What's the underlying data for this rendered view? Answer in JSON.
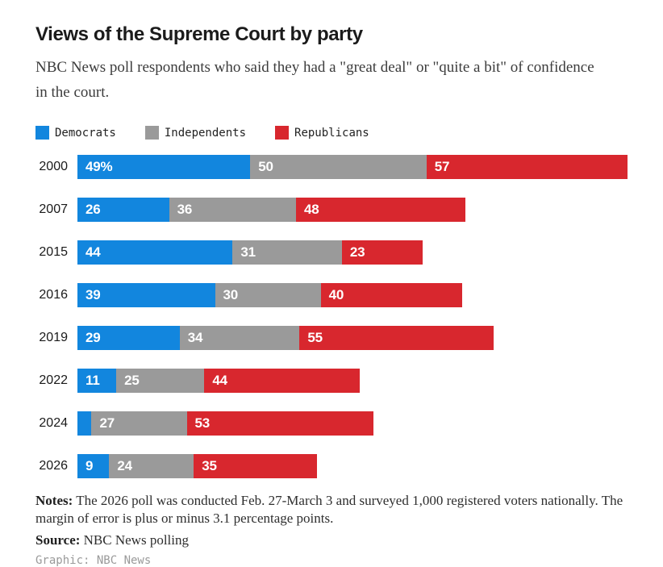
{
  "header": {
    "title": "Views of the Supreme Court by party",
    "subtitle": "NBC News poll respondents who said they had a \"great deal\" or \"quite a bit\" of confidence in the court."
  },
  "chart_data": {
    "type": "bar",
    "orientation": "horizontal",
    "stacked": true,
    "grid": false,
    "legend_position": "top",
    "x_max_units": 156,
    "categories": [
      "2000",
      "2007",
      "2015",
      "2016",
      "2019",
      "2022",
      "2024",
      "2026"
    ],
    "series": [
      {
        "name": "Democrats",
        "color": "#1286DE",
        "values": [
          49,
          26,
          44,
          39,
          29,
          11,
          4,
          9
        ],
        "labels": [
          "49%",
          "26",
          "44",
          "39",
          "29",
          "11",
          "",
          "9"
        ]
      },
      {
        "name": "Independents",
        "color": "#9A9A9A",
        "values": [
          50,
          36,
          31,
          30,
          34,
          25,
          27,
          24
        ],
        "labels": [
          "50",
          "36",
          "31",
          "30",
          "34",
          "25",
          "27",
          "24"
        ]
      },
      {
        "name": "Republicans",
        "color": "#D8272E",
        "values": [
          57,
          48,
          23,
          40,
          55,
          44,
          53,
          35
        ],
        "labels": [
          "57",
          "48",
          "23",
          "40",
          "55",
          "44",
          "53",
          "35"
        ]
      }
    ]
  },
  "footer": {
    "notes_label": "Notes:",
    "notes_text": "The 2026 poll was conducted Feb. 27-March 3 and surveyed 1,000 registered voters nationally. The margin of error is plus or minus 3.1 percentage points.",
    "source_label": "Source:",
    "source_text": "NBC News polling",
    "credit": "Graphic: NBC News"
  }
}
